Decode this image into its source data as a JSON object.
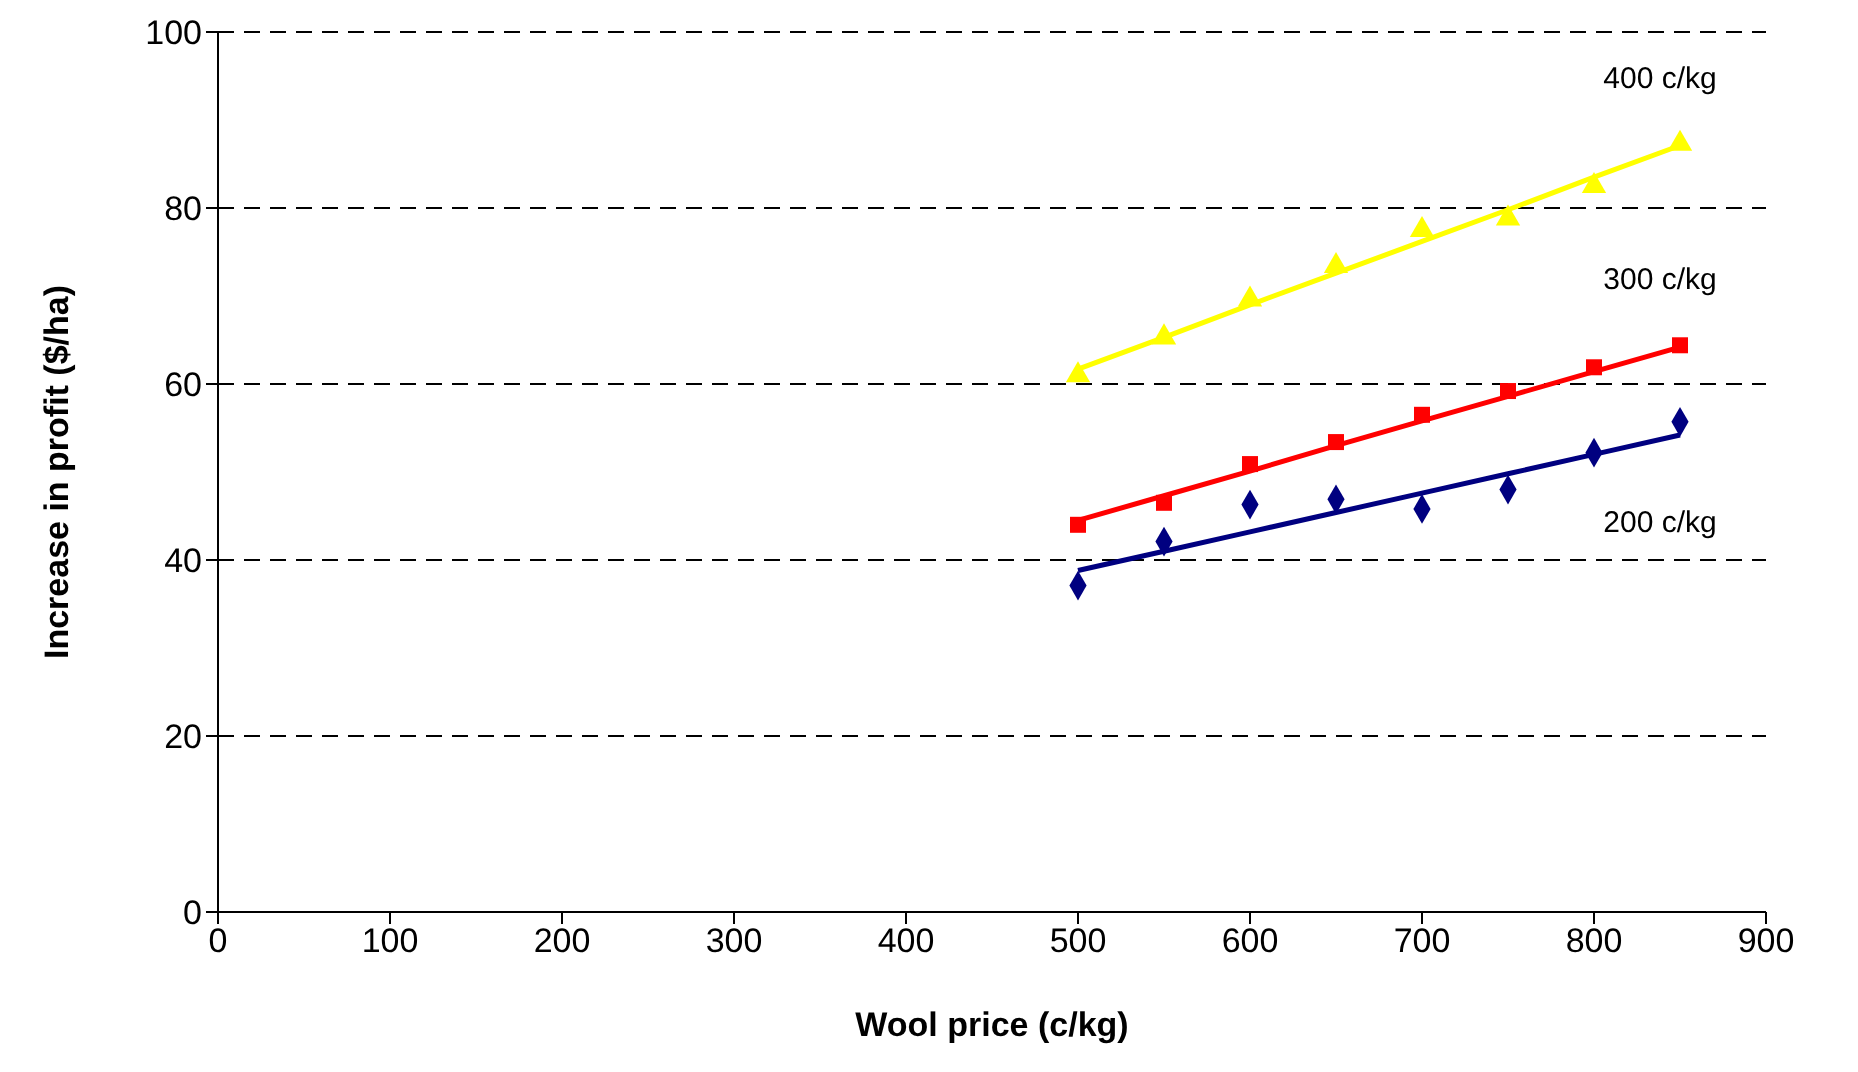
{
  "chart_data": {
    "type": "scatter",
    "xlabel": "Wool price (c/kg)",
    "ylabel": "Increase in profit ($/ha)",
    "xlim": [
      0,
      900
    ],
    "xticks": [
      0,
      100,
      200,
      300,
      400,
      500,
      600,
      700,
      800,
      900
    ],
    "ylim": [
      0,
      100
    ],
    "yticks": [
      0,
      20,
      40,
      60,
      80,
      100
    ],
    "grid": "y",
    "legend": false,
    "x": [
      500,
      550,
      600,
      650,
      700,
      750,
      800,
      850
    ],
    "series": [
      {
        "name": "400 c/kg",
        "marker": "triangle",
        "color": "#ffff00",
        "values": [
          61,
          65.3,
          69.6,
          73.4,
          77.5,
          78.8,
          82.5,
          87.3
        ]
      },
      {
        "name": "300 c/kg",
        "marker": "square",
        "color": "#ff0000",
        "values": [
          44,
          46.5,
          50.9,
          53.4,
          56.5,
          59.2,
          61.9,
          64.4
        ]
      },
      {
        "name": "200 c/kg",
        "marker": "diamond",
        "color": "#000080",
        "values": [
          37.1,
          42.1,
          46.3,
          46.9,
          45.8,
          48,
          52.2,
          55.7
        ]
      },
      {
        "type": "line",
        "marker": "none",
        "line_style": "solid",
        "color": "#ffff00",
        "values": [
          61.7,
          65.3,
          69.0,
          72.6,
          76.2,
          79.8,
          83.5,
          87.1
        ]
      },
      {
        "type": "line",
        "marker": "none",
        "line_style": "solid",
        "color": "#ff0000",
        "values": [
          44.5,
          47.3,
          50.1,
          53.0,
          55.8,
          58.6,
          61.4,
          64.2
        ]
      },
      {
        "type": "line",
        "marker": "none",
        "line_style": "solid",
        "color": "#000080",
        "values": [
          38.8,
          41.0,
          43.2,
          45.4,
          47.6,
          49.8,
          52.0,
          54.2
        ]
      }
    ]
  }
}
